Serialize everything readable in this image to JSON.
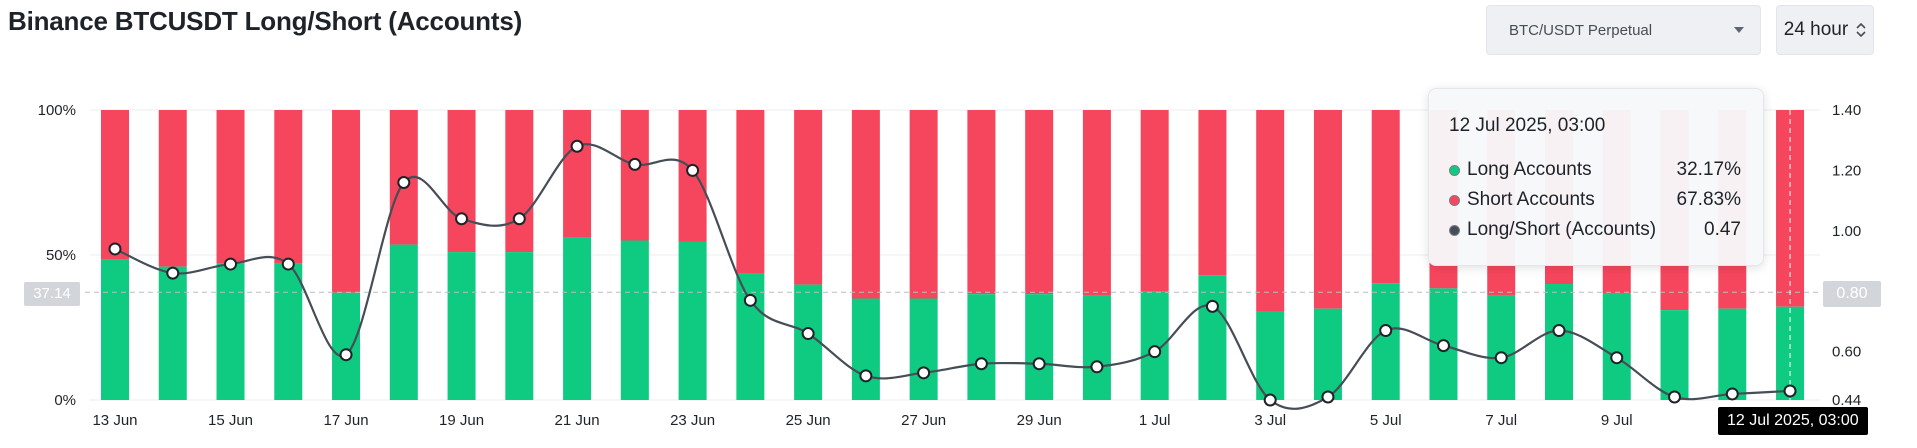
{
  "title": "Binance BTCUSDT Long/Short (Accounts)",
  "controls": {
    "market": "BTC/USDT Perpetual",
    "period": "24 hour"
  },
  "tooltip": {
    "date": "12 Jul 2025, 03:00",
    "rows": [
      {
        "label": "Long Accounts",
        "value": "32.17%",
        "color": "#0ecb81"
      },
      {
        "label": "Short Accounts",
        "value": "67.83%",
        "color": "#f6465d"
      },
      {
        "label": "Long/Short (Accounts)",
        "value": "0.47",
        "color": "#474d57"
      }
    ]
  },
  "crosshair": {
    "x_label": "12 Jul 2025, 03:00",
    "left_value": "37.14",
    "right_value": "0.80"
  },
  "colors": {
    "long": "#0ecb81",
    "short": "#f6465d",
    "ratio_line": "#474d57",
    "grid": "#eaecef"
  },
  "chart_data": {
    "type": "bar",
    "title": "Binance BTCUSDT Long/Short (Accounts)",
    "stacked": true,
    "left_axis": {
      "ticks": [
        "100%",
        "50%",
        "0%"
      ],
      "ylim": [
        0,
        100
      ]
    },
    "right_axis": {
      "ticks": [
        "1.40",
        "1.20",
        "1.00",
        "0.80",
        "0.60",
        "0.44"
      ],
      "ylim": [
        0.44,
        1.4
      ]
    },
    "x_tick_labels": [
      "13 Jun",
      "15 Jun",
      "17 Jun",
      "19 Jun",
      "21 Jun",
      "23 Jun",
      "25 Jun",
      "27 Jun",
      "29 Jun",
      "1 Jul",
      "3 Jul",
      "5 Jul",
      "7 Jul",
      "9 Jul"
    ],
    "categories": [
      "13 Jun",
      "14 Jun",
      "15 Jun",
      "16 Jun",
      "17 Jun",
      "18 Jun",
      "19 Jun",
      "20 Jun",
      "21 Jun",
      "22 Jun",
      "23 Jun",
      "24 Jun",
      "25 Jun",
      "26 Jun",
      "27 Jun",
      "28 Jun",
      "29 Jun",
      "30 Jun",
      "1 Jul",
      "2 Jul",
      "3 Jul",
      "4 Jul",
      "5 Jul",
      "6 Jul",
      "7 Jul",
      "8 Jul",
      "9 Jul",
      "10 Jul",
      "11 Jul",
      "12 Jul"
    ],
    "series": [
      {
        "name": "Long Accounts",
        "values": [
          48.4,
          46.0,
          47.0,
          47.0,
          37.0,
          53.6,
          51.0,
          51.0,
          56.2,
          55.0,
          54.5,
          43.5,
          39.8,
          35.0,
          35.0,
          36.5,
          36.5,
          36.0,
          37.3,
          43.0,
          30.5,
          31.5,
          40.3,
          38.5,
          36.0,
          40.0,
          36.7,
          31.0,
          31.5,
          32.17
        ]
      },
      {
        "name": "Short Accounts",
        "values": [
          51.6,
          54.0,
          53.0,
          53.0,
          63.0,
          46.4,
          49.0,
          49.0,
          43.8,
          45.0,
          45.5,
          56.5,
          60.2,
          65.0,
          65.0,
          63.5,
          63.5,
          64.0,
          62.7,
          57.0,
          69.5,
          68.5,
          59.7,
          61.5,
          64.0,
          60.0,
          63.3,
          69.0,
          68.5,
          67.83
        ]
      },
      {
        "name": "Long/Short (Accounts)",
        "values": [
          0.94,
          0.86,
          0.89,
          0.89,
          0.59,
          1.16,
          1.04,
          1.04,
          1.28,
          1.22,
          1.2,
          0.77,
          0.66,
          0.52,
          0.53,
          0.56,
          0.56,
          0.55,
          0.6,
          0.75,
          0.44,
          0.45,
          0.67,
          0.62,
          0.58,
          0.67,
          0.58,
          0.45,
          0.46,
          0.47
        ]
      }
    ]
  }
}
